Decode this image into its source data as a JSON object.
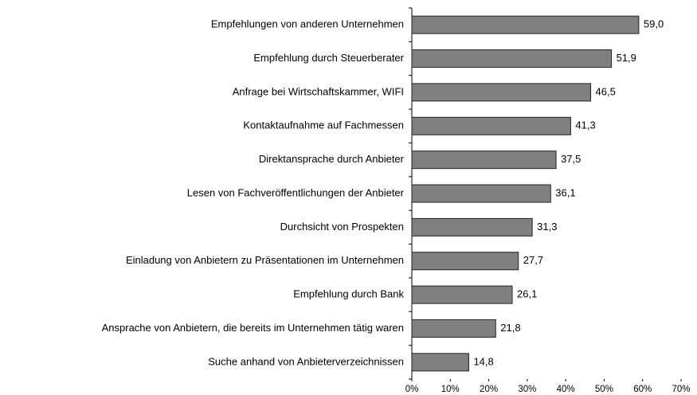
{
  "chart_data": {
    "type": "bar",
    "orientation": "horizontal",
    "categories": [
      "Empfehlungen von anderen Unternehmen",
      "Empfehlung durch Steuerberater",
      "Anfrage bei Wirtschaftskammer, WIFI",
      "Kontaktaufnahme auf Fachmessen",
      "Direktansprache durch Anbieter",
      "Lesen von Fachveröffentlichungen der Anbieter",
      "Durchsicht von Prospekten",
      "Einladung von Anbietern zu Präsentationen im Unternehmen",
      "Empfehlung durch Bank",
      "Ansprache von Anbietern, die bereits im Unternehmen tätig waren",
      "Suche anhand von Anbieterverzeichnissen"
    ],
    "values": [
      59.0,
      51.9,
      46.5,
      41.3,
      37.5,
      36.1,
      31.3,
      27.7,
      26.1,
      21.8,
      14.8
    ],
    "value_labels": [
      "59,0",
      "51,9",
      "46,5",
      "41,3",
      "37,5",
      "36,1",
      "31,3",
      "27,7",
      "26,1",
      "21,8",
      "14,8"
    ],
    "color": "#808080",
    "xlim": [
      0,
      70
    ],
    "xticks": [
      {
        "value": 0,
        "label": "0%"
      },
      {
        "value": 10,
        "label": "10%"
      },
      {
        "value": 20,
        "label": "20%"
      },
      {
        "value": 30,
        "label": "30%"
      },
      {
        "value": 40,
        "label": "40%"
      },
      {
        "value": 50,
        "label": "50%"
      },
      {
        "value": 60,
        "label": "60%"
      },
      {
        "value": 70,
        "label": "70%"
      }
    ],
    "grid": false
  }
}
